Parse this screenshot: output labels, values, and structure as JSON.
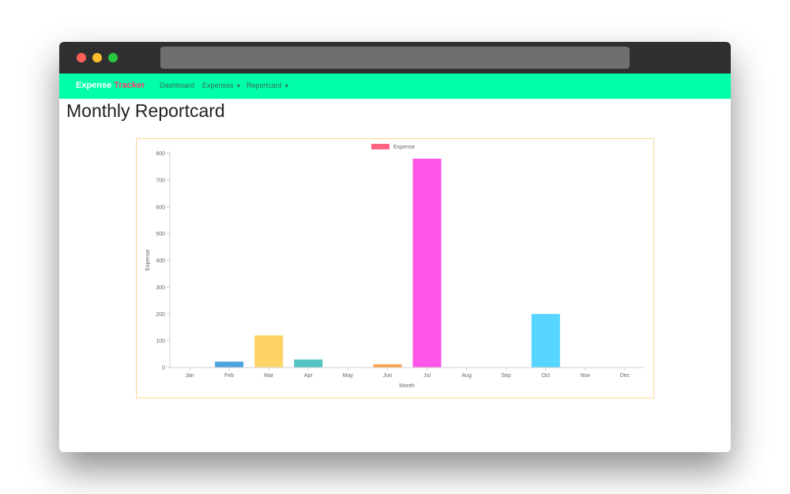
{
  "navbar": {
    "brand_part1": "Expense",
    "brand_part2": "Tracker",
    "links": [
      "Dashboard",
      "Expenses",
      "Reportcard"
    ]
  },
  "page": {
    "title": "Monthly Reportcard"
  },
  "colors": {
    "navbar": "#00ffa8",
    "brand_accent": "#ff3b6b",
    "legend_swatch": "#ff6384"
  },
  "chart_data": {
    "type": "bar",
    "title": "",
    "legend": {
      "label": "Expense",
      "position": "top"
    },
    "xlabel": "Month",
    "ylabel": "Expense",
    "ylim": [
      0,
      800
    ],
    "yticks": [
      0,
      100,
      200,
      300,
      400,
      500,
      600,
      700,
      800
    ],
    "categories": [
      "Jan",
      "Feb",
      "Mar",
      "Apr",
      "May",
      "Jun",
      "Jul",
      "Aug",
      "Sep",
      "Oct",
      "Nov",
      "Dec"
    ],
    "values": [
      0,
      22,
      120,
      30,
      0,
      12,
      780,
      0,
      0,
      200,
      0,
      0
    ],
    "bar_colors": [
      "#ff6384",
      "#4ba3e0",
      "#ffd466",
      "#57c4c4",
      "#9966ff",
      "#ffa04d",
      "#ff55e6",
      "#c9cbcf",
      "#ff6384",
      "#55d5ff",
      "#4ba3e0",
      "#ffd466"
    ],
    "grid": false
  }
}
